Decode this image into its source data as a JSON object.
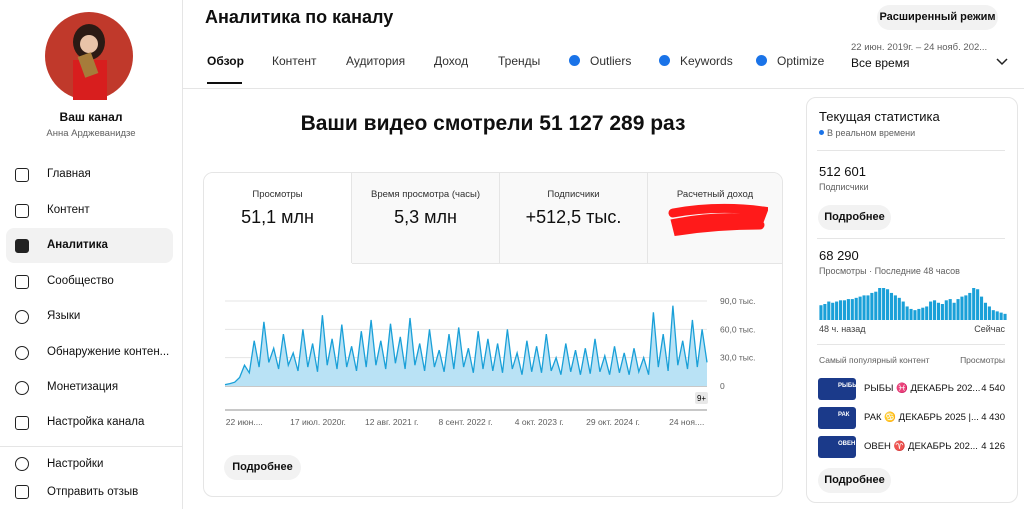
{
  "sidebar": {
    "channel_title": "Ваш канал",
    "channel_owner": "Анна Арджеванидзе",
    "nav": [
      "Главная",
      "Контент",
      "Аналитика",
      "Сообщество",
      "Языки",
      "Обнаружение контен...",
      "Монетизация",
      "Настройка канала"
    ],
    "footer": [
      "Настройки",
      "Отправить отзыв"
    ]
  },
  "header": {
    "title": "Аналитика по каналу",
    "advanced_button": "Расширенный режим",
    "tabs": [
      "Обзор",
      "Контент",
      "Аудитория",
      "Доход",
      "Тренды",
      "Outliers",
      "Keywords",
      "Optimize"
    ],
    "date_range": "22 июн. 2019г. – 24 нояб. 202...",
    "period": "Все время"
  },
  "overview": {
    "headline": "Ваши видео смотрели 51 127 289 раз",
    "metrics": [
      {
        "label": "Просмотры",
        "value": "51,1 млн"
      },
      {
        "label": "Время просмотра (часы)",
        "value": "5,3 млн"
      },
      {
        "label": "Подписчики",
        "value": "+512,5 тыс."
      },
      {
        "label": "Расчетный доход"
      }
    ],
    "chart": {
      "type": "area",
      "color": "#1aa0d8",
      "ylim": [
        0,
        90000
      ],
      "yticks": [
        {
          "value": 0,
          "label": "0"
        },
        {
          "value": 30000,
          "label": "30,0 тыс."
        },
        {
          "value": 60000,
          "label": "60,0 тыс."
        },
        {
          "value": 90000,
          "label": "90,0 тыс."
        }
      ],
      "x_labels": [
        "22 июн....",
        "17 июл. 2020г.",
        "12 авг. 2021 г.",
        "8 сент. 2022 г.",
        "4 окт. 2023 г.",
        "29 окт. 2024 г.",
        "24 ноя...."
      ],
      "badge": "9+",
      "values": [
        1500,
        2500,
        4000,
        9000,
        22000,
        14000,
        48000,
        20000,
        68000,
        25000,
        40000,
        18000,
        55000,
        22000,
        35000,
        16000,
        60000,
        20000,
        45000,
        15000,
        75000,
        22000,
        50000,
        18000,
        65000,
        20000,
        42000,
        16000,
        58000,
        20000,
        70000,
        22000,
        48000,
        18000,
        66000,
        24000,
        52000,
        18000,
        72000,
        22000,
        45000,
        16000,
        60000,
        20000,
        38000,
        15000,
        55000,
        18000,
        62000,
        20000,
        40000,
        14000,
        58000,
        18000,
        50000,
        16000,
        45000,
        14000,
        60000,
        18000,
        35000,
        12000,
        48000,
        15000,
        42000,
        14000,
        55000,
        16000,
        30000,
        12000,
        45000,
        15000,
        38000,
        12000,
        40000,
        13000,
        50000,
        15000,
        32000,
        12000,
        42000,
        14000,
        35000,
        12000,
        40000,
        15000,
        30000,
        12000,
        78000,
        20000,
        55000,
        16000,
        85000,
        22000,
        48000,
        18000,
        70000,
        20000,
        60000,
        25000
      ]
    },
    "more_button": "Подробнее"
  },
  "realtime": {
    "title": "Текущая статистика",
    "live": "В реальном времени",
    "subscribers": "512 601",
    "subscribers_label": "Подписчики",
    "more_button": "Подробнее",
    "views": "68 290",
    "views_label": "Просмотры · Последние 48 часов",
    "bars": [
      1200,
      1300,
      1500,
      1400,
      1500,
      1600,
      1600,
      1700,
      1700,
      1800,
      1900,
      2000,
      2000,
      2200,
      2300,
      2600,
      2600,
      2500,
      2200,
      2000,
      1800,
      1500,
      1100,
      900,
      800,
      900,
      1000,
      1100,
      1500,
      1600,
      1400,
      1300,
      1600,
      1700,
      1400,
      1700,
      1900,
      2000,
      2200,
      2600,
      2500,
      1900,
      1400,
      1100,
      800,
      700,
      600,
      500
    ],
    "bars_start": "48 ч. назад",
    "bars_end": "Сейчас",
    "top_header": "Самый популярный контент",
    "top_views_header": "Просмотры",
    "top": [
      {
        "thumb": "РЫБЫ",
        "title": "РЫБЫ ♓ ДЕКАБРЬ 202...",
        "views": "4 540"
      },
      {
        "thumb": "РАК",
        "title": "РАК ♋ ДЕКАБРЬ 2025 |...",
        "views": "4 430"
      },
      {
        "thumb": "ОВЕН",
        "title": "ОВЕН ♈ ДЕКАБРЬ 202...",
        "views": "4 126"
      }
    ],
    "more_button2": "Подробнее"
  }
}
